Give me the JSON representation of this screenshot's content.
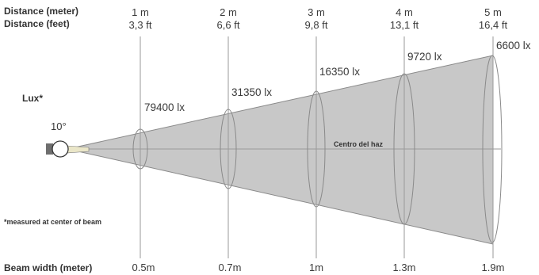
{
  "header": {
    "distance_meter_label": "Distance (meter)",
    "distance_feet_label": "Distance (feet)"
  },
  "side": {
    "lux_label": "Lux*",
    "angle_label": "10°",
    "note": "*measured at center of beam",
    "center_label": "Centro del haz"
  },
  "footer": {
    "beam_width_label": "Beam width (meter)"
  },
  "positions": [
    {
      "distance_m": "1 m",
      "distance_ft": "3,3 ft",
      "lux": "79400 lx",
      "beam_width": "0.5m"
    },
    {
      "distance_m": "2 m",
      "distance_ft": "6,6 ft",
      "lux": "31350 lx",
      "beam_width": "0.7m"
    },
    {
      "distance_m": "3 m",
      "distance_ft": "9,8 ft",
      "lux": "16350 lx",
      "beam_width": "1m"
    },
    {
      "distance_m": "4 m",
      "distance_ft": "13,1 ft",
      "lux": "9720 lx",
      "beam_width": "1.3m"
    },
    {
      "distance_m": "5 m",
      "distance_ft": "16,4 ft",
      "lux": "6600 lx",
      "beam_width": "1.9m"
    }
  ],
  "colors": {
    "beam_fill": "#c8c8c8",
    "beam_stroke": "#888888",
    "line": "#999999",
    "text": "#3a3a3a"
  }
}
